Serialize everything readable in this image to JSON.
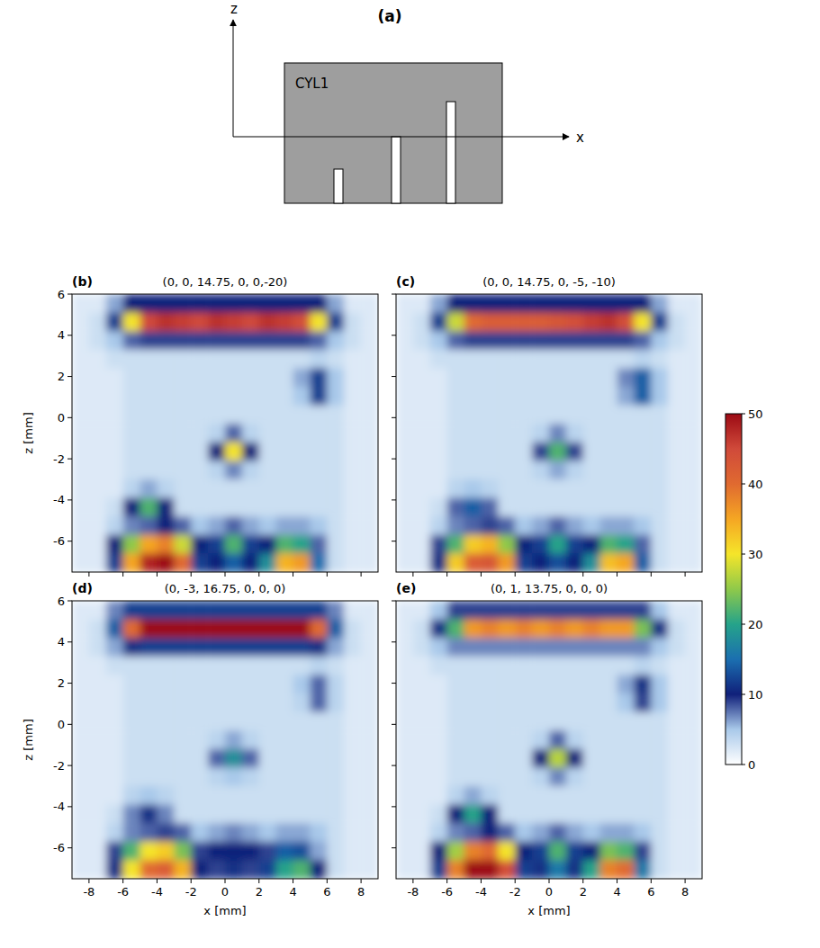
{
  "diagram": {
    "label": "(a)",
    "object": "CYL1",
    "axes": {
      "x": "x",
      "z": "z"
    }
  },
  "colorbar": {
    "range": [
      0,
      50
    ],
    "ticks": [
      0,
      10,
      20,
      30,
      40,
      50
    ]
  },
  "chart_data": [
    {
      "type": "heatmap",
      "panel": "(b)",
      "title": "(0, 0, 14.75, 0, 0,-20)",
      "y_label": "z [mm]",
      "tick_labels": "y",
      "xlim": [
        -9,
        9
      ],
      "ylim": [
        -7.5,
        6
      ],
      "xticks": [
        -8,
        -6,
        -4,
        -2,
        0,
        2,
        4,
        6,
        8
      ],
      "yticks": [
        -6,
        -4,
        -2,
        0,
        2,
        4,
        6
      ],
      "cells": [
        [
          2,
          2,
          6,
          10,
          10,
          10,
          10,
          10,
          10,
          10,
          10,
          10,
          10,
          10,
          10,
          6,
          2,
          2
        ],
        [
          2,
          3,
          12,
          30,
          45,
          47,
          46,
          45,
          47,
          46,
          45,
          47,
          46,
          44,
          30,
          12,
          3,
          2
        ],
        [
          2,
          3,
          5,
          8,
          9,
          9,
          9,
          9,
          9,
          9,
          9,
          9,
          9,
          9,
          8,
          5,
          3,
          2
        ],
        [
          2,
          2,
          3,
          3,
          3,
          3,
          3,
          3,
          3,
          3,
          3,
          3,
          3,
          3,
          4,
          3,
          2,
          2
        ],
        [
          2,
          2,
          2,
          3,
          3,
          3,
          3,
          3,
          3,
          3,
          3,
          3,
          3,
          6,
          12,
          5,
          2,
          2
        ],
        [
          2,
          2,
          2,
          3,
          3,
          3,
          3,
          3,
          3,
          3,
          3,
          3,
          3,
          5,
          12,
          5,
          2,
          2
        ],
        [
          2,
          2,
          2,
          3,
          3,
          3,
          3,
          3,
          3,
          3,
          3,
          3,
          3,
          3,
          3,
          3,
          2,
          2
        ],
        [
          2,
          2,
          2,
          3,
          3,
          3,
          3,
          3,
          4,
          8,
          4,
          3,
          3,
          3,
          3,
          3,
          2,
          2
        ],
        [
          2,
          2,
          2,
          3,
          3,
          3,
          3,
          3,
          10,
          30,
          10,
          3,
          3,
          3,
          3,
          3,
          2,
          2
        ],
        [
          2,
          2,
          2,
          3,
          3,
          3,
          3,
          3,
          4,
          7,
          4,
          3,
          3,
          3,
          3,
          3,
          2,
          2
        ],
        [
          2,
          2,
          2,
          4,
          6,
          4,
          3,
          3,
          3,
          3,
          3,
          3,
          3,
          3,
          3,
          3,
          2,
          2
        ],
        [
          2,
          2,
          3,
          10,
          22,
          10,
          3,
          3,
          3,
          3,
          3,
          3,
          3,
          3,
          3,
          3,
          2,
          2
        ],
        [
          2,
          2,
          4,
          7,
          8,
          10,
          8,
          5,
          6,
          8,
          6,
          5,
          6,
          6,
          5,
          3,
          2,
          2
        ],
        [
          2,
          2,
          10,
          25,
          35,
          38,
          28,
          10,
          12,
          22,
          12,
          10,
          22,
          20,
          8,
          3,
          2,
          2
        ],
        [
          2,
          2,
          12,
          35,
          48,
          50,
          40,
          12,
          10,
          14,
          10,
          18,
          34,
          36,
          15,
          3,
          2,
          2
        ]
      ]
    },
    {
      "type": "heatmap",
      "panel": "(c)",
      "title": "(0, 0, 14.75, 0, -5, -10)",
      "tick_labels": false,
      "xlim": [
        -9,
        9
      ],
      "ylim": [
        -7.5,
        6
      ],
      "xticks": [
        -8,
        -6,
        -4,
        -2,
        0,
        2,
        4,
        6,
        8
      ],
      "yticks": [
        -6,
        -4,
        -2,
        0,
        2,
        4,
        6
      ],
      "cells": [
        [
          2,
          2,
          6,
          10,
          10,
          10,
          10,
          10,
          10,
          10,
          10,
          10,
          10,
          10,
          10,
          6,
          2,
          2
        ],
        [
          2,
          3,
          12,
          28,
          40,
          42,
          42,
          42,
          42,
          43,
          44,
          46,
          47,
          44,
          30,
          12,
          3,
          2
        ],
        [
          2,
          3,
          5,
          8,
          9,
          9,
          9,
          9,
          9,
          9,
          9,
          9,
          9,
          9,
          8,
          5,
          3,
          2
        ],
        [
          2,
          2,
          3,
          3,
          3,
          3,
          3,
          3,
          3,
          3,
          3,
          3,
          3,
          3,
          4,
          3,
          2,
          2
        ],
        [
          2,
          2,
          2,
          3,
          3,
          3,
          3,
          3,
          3,
          3,
          3,
          3,
          3,
          7,
          14,
          5,
          2,
          2
        ],
        [
          2,
          2,
          2,
          3,
          3,
          3,
          3,
          3,
          3,
          3,
          3,
          3,
          3,
          6,
          14,
          5,
          2,
          2
        ],
        [
          2,
          2,
          2,
          3,
          3,
          3,
          3,
          3,
          3,
          3,
          3,
          3,
          3,
          3,
          3,
          3,
          2,
          2
        ],
        [
          2,
          2,
          2,
          3,
          3,
          3,
          3,
          3,
          4,
          7,
          4,
          3,
          3,
          3,
          3,
          3,
          2,
          2
        ],
        [
          2,
          2,
          2,
          3,
          3,
          3,
          3,
          3,
          9,
          22,
          9,
          3,
          3,
          3,
          3,
          3,
          2,
          2
        ],
        [
          2,
          2,
          2,
          3,
          3,
          3,
          3,
          3,
          4,
          6,
          4,
          3,
          3,
          3,
          3,
          3,
          2,
          2
        ],
        [
          2,
          2,
          2,
          4,
          5,
          4,
          3,
          3,
          3,
          3,
          3,
          3,
          3,
          3,
          3,
          3,
          2,
          2
        ],
        [
          2,
          2,
          3,
          8,
          14,
          8,
          3,
          3,
          3,
          3,
          3,
          3,
          3,
          3,
          3,
          3,
          2,
          2
        ],
        [
          2,
          2,
          4,
          7,
          8,
          9,
          8,
          5,
          6,
          8,
          6,
          5,
          6,
          6,
          5,
          3,
          2,
          2
        ],
        [
          2,
          2,
          9,
          22,
          32,
          34,
          25,
          10,
          12,
          20,
          12,
          10,
          22,
          20,
          8,
          3,
          2,
          2
        ],
        [
          2,
          2,
          11,
          32,
          42,
          43,
          36,
          12,
          10,
          13,
          10,
          18,
          33,
          35,
          14,
          3,
          2,
          2
        ]
      ]
    },
    {
      "type": "heatmap",
      "panel": "(d)",
      "title": "(0, -3, 16.75, 0, 0, 0)",
      "y_label": "z [mm]",
      "x_label": "x [mm]",
      "tick_labels": true,
      "xlim": [
        -9,
        9
      ],
      "ylim": [
        -7.5,
        6
      ],
      "xticks": [
        -8,
        -6,
        -4,
        -2,
        0,
        2,
        4,
        6,
        8
      ],
      "yticks": [
        -6,
        -4,
        -2,
        0,
        2,
        4,
        6
      ],
      "cells": [
        [
          2,
          2,
          7,
          12,
          12,
          12,
          12,
          12,
          12,
          12,
          12,
          12,
          12,
          12,
          12,
          7,
          2,
          2
        ],
        [
          2,
          3,
          14,
          40,
          55,
          58,
          58,
          58,
          58,
          58,
          58,
          58,
          58,
          55,
          40,
          14,
          3,
          2
        ],
        [
          2,
          3,
          6,
          11,
          12,
          12,
          12,
          12,
          12,
          12,
          12,
          12,
          12,
          12,
          11,
          6,
          3,
          2
        ],
        [
          2,
          2,
          3,
          3,
          3,
          3,
          3,
          3,
          3,
          3,
          3,
          3,
          3,
          3,
          4,
          3,
          2,
          2
        ],
        [
          2,
          2,
          2,
          3,
          3,
          3,
          3,
          3,
          3,
          3,
          3,
          3,
          3,
          5,
          8,
          4,
          2,
          2
        ],
        [
          2,
          2,
          2,
          3,
          3,
          3,
          3,
          3,
          3,
          3,
          3,
          3,
          3,
          4,
          8,
          4,
          2,
          2
        ],
        [
          2,
          2,
          2,
          3,
          3,
          3,
          3,
          3,
          3,
          3,
          3,
          3,
          3,
          3,
          3,
          3,
          2,
          2
        ],
        [
          2,
          2,
          2,
          3,
          3,
          3,
          3,
          3,
          4,
          6,
          4,
          3,
          3,
          3,
          3,
          3,
          2,
          2
        ],
        [
          2,
          2,
          2,
          3,
          3,
          3,
          3,
          3,
          8,
          18,
          8,
          3,
          3,
          3,
          3,
          3,
          2,
          2
        ],
        [
          2,
          2,
          2,
          3,
          3,
          3,
          3,
          3,
          4,
          5,
          4,
          3,
          3,
          3,
          3,
          3,
          2,
          2
        ],
        [
          2,
          2,
          2,
          4,
          5,
          4,
          3,
          3,
          3,
          3,
          3,
          3,
          3,
          3,
          3,
          3,
          2,
          2
        ],
        [
          2,
          2,
          3,
          7,
          11,
          7,
          3,
          3,
          3,
          3,
          3,
          3,
          3,
          3,
          3,
          3,
          2,
          2
        ],
        [
          2,
          2,
          4,
          7,
          8,
          9,
          8,
          5,
          6,
          7,
          6,
          5,
          6,
          6,
          5,
          3,
          2,
          2
        ],
        [
          2,
          2,
          9,
          22,
          30,
          32,
          24,
          9,
          10,
          10,
          10,
          9,
          14,
          13,
          6,
          3,
          2,
          2
        ],
        [
          2,
          2,
          11,
          30,
          40,
          42,
          34,
          10,
          9,
          11,
          9,
          12,
          20,
          22,
          10,
          3,
          2,
          2
        ]
      ]
    },
    {
      "type": "heatmap",
      "panel": "(e)",
      "title": "(0, 1, 13.75, 0, 0, 0)",
      "x_label": "x [mm]",
      "tick_labels": "x",
      "xlim": [
        -9,
        9
      ],
      "ylim": [
        -7.5,
        6
      ],
      "xticks": [
        -8,
        -6,
        -4,
        -2,
        0,
        2,
        4,
        6,
        8
      ],
      "yticks": [
        -6,
        -4,
        -2,
        0,
        2,
        4,
        6
      ],
      "cells": [
        [
          2,
          2,
          5,
          9,
          9,
          9,
          9,
          9,
          9,
          9,
          9,
          9,
          9,
          9,
          9,
          5,
          2,
          2
        ],
        [
          2,
          3,
          11,
          22,
          36,
          38,
          36,
          38,
          36,
          38,
          36,
          38,
          36,
          36,
          24,
          11,
          3,
          2
        ],
        [
          2,
          3,
          5,
          7,
          7,
          7,
          7,
          7,
          7,
          7,
          7,
          7,
          7,
          7,
          7,
          5,
          3,
          2
        ],
        [
          2,
          2,
          3,
          3,
          3,
          3,
          3,
          3,
          3,
          3,
          3,
          3,
          3,
          3,
          4,
          3,
          2,
          2
        ],
        [
          2,
          2,
          2,
          3,
          3,
          3,
          3,
          3,
          3,
          3,
          3,
          3,
          3,
          6,
          11,
          5,
          2,
          2
        ],
        [
          2,
          2,
          2,
          3,
          3,
          3,
          3,
          3,
          3,
          3,
          3,
          3,
          3,
          5,
          9,
          5,
          2,
          2
        ],
        [
          2,
          2,
          2,
          3,
          3,
          3,
          3,
          3,
          3,
          3,
          3,
          3,
          3,
          3,
          3,
          3,
          2,
          2
        ],
        [
          2,
          2,
          2,
          3,
          3,
          3,
          3,
          3,
          4,
          8,
          4,
          3,
          3,
          3,
          3,
          3,
          2,
          2
        ],
        [
          2,
          2,
          2,
          3,
          3,
          3,
          3,
          3,
          10,
          27,
          10,
          3,
          3,
          3,
          3,
          3,
          2,
          2
        ],
        [
          2,
          2,
          2,
          3,
          3,
          3,
          3,
          3,
          4,
          7,
          4,
          3,
          3,
          3,
          3,
          3,
          2,
          2
        ],
        [
          2,
          2,
          2,
          4,
          6,
          4,
          3,
          3,
          3,
          3,
          3,
          3,
          3,
          3,
          3,
          3,
          2,
          2
        ],
        [
          2,
          2,
          3,
          10,
          20,
          10,
          3,
          3,
          3,
          3,
          3,
          3,
          3,
          3,
          3,
          3,
          2,
          2
        ],
        [
          2,
          2,
          4,
          7,
          8,
          10,
          8,
          5,
          6,
          8,
          6,
          5,
          6,
          6,
          5,
          3,
          2,
          2
        ],
        [
          2,
          2,
          10,
          26,
          38,
          40,
          30,
          10,
          12,
          22,
          12,
          10,
          24,
          22,
          9,
          3,
          2,
          2
        ],
        [
          2,
          2,
          12,
          38,
          52,
          55,
          44,
          12,
          11,
          16,
          11,
          20,
          38,
          40,
          16,
          3,
          2,
          2
        ]
      ]
    }
  ]
}
